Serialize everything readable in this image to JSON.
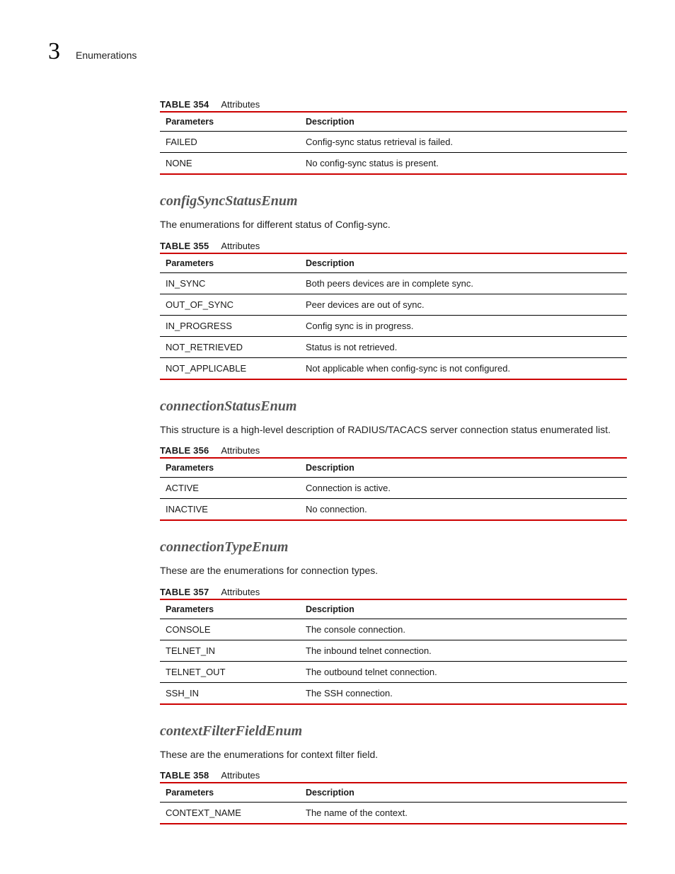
{
  "colors": {
    "accent": "#cc0000",
    "section_title": "#555555",
    "text": "#1a1a1a"
  },
  "header": {
    "chapter_number": "3",
    "chapter_title": "Enumerations"
  },
  "table354": {
    "label": "TABLE 354",
    "caption": "Attributes",
    "columns": [
      "Parameters",
      "Description"
    ],
    "rows": [
      [
        "FAILED",
        "Config-sync status retrieval is failed."
      ],
      [
        "NONE",
        "No config-sync status is present."
      ]
    ]
  },
  "section1": {
    "title": "configSyncStatusEnum",
    "description": "The enumerations for different status of Config-sync."
  },
  "table355": {
    "label": "TABLE 355",
    "caption": "Attributes",
    "columns": [
      "Parameters",
      "Description"
    ],
    "rows": [
      [
        "IN_SYNC",
        "Both peers devices are in complete sync."
      ],
      [
        "OUT_OF_SYNC",
        "Peer devices are out of sync."
      ],
      [
        "IN_PROGRESS",
        "Config sync is in progress."
      ],
      [
        "NOT_RETRIEVED",
        "Status is not retrieved."
      ],
      [
        "NOT_APPLICABLE",
        "Not applicable when config-sync is not configured."
      ]
    ]
  },
  "section2": {
    "title": "connectionStatusEnum",
    "description": "This structure is a high-level description of RADIUS/TACACS server connection status enumerated list."
  },
  "table356": {
    "label": "TABLE 356",
    "caption": "Attributes",
    "columns": [
      "Parameters",
      "Description"
    ],
    "rows": [
      [
        "ACTIVE",
        "Connection is active."
      ],
      [
        "INACTIVE",
        "No connection."
      ]
    ]
  },
  "section3": {
    "title": "connectionTypeEnum",
    "description": "These are the enumerations for connection types."
  },
  "table357": {
    "label": "TABLE 357",
    "caption": "Attributes",
    "columns": [
      "Parameters",
      "Description"
    ],
    "rows": [
      [
        "CONSOLE",
        "The console connection."
      ],
      [
        "TELNET_IN",
        "The inbound telnet connection."
      ],
      [
        "TELNET_OUT",
        "The outbound telnet connection."
      ],
      [
        "SSH_IN",
        "The SSH connection."
      ]
    ]
  },
  "section4": {
    "title": "contextFilterFieldEnum",
    "description": "These are the enumerations for context filter field."
  },
  "table358": {
    "label": "TABLE 358",
    "caption": "Attributes",
    "columns": [
      "Parameters",
      "Description"
    ],
    "rows": [
      [
        "CONTEXT_NAME",
        "The name of the context."
      ]
    ]
  }
}
